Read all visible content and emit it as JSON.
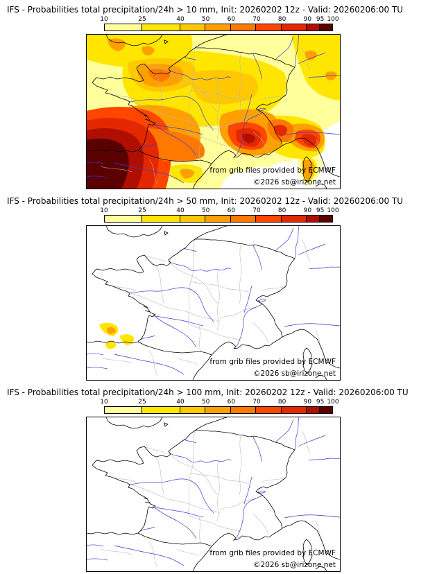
{
  "panels": [
    {
      "threshold": "10 mm",
      "title": "IFS - Probabilities total precipitation/24h > 10 mm, Init: 20260202 12z - Valid: 20260206:00 TU"
    },
    {
      "threshold": "50 mm",
      "title": "IFS - Probabilities total precipitation/24h > 50 mm, Init: 20260202 12z - Valid: 20260206:00 TU"
    },
    {
      "threshold": "100 mm",
      "title": "IFS - Probabilities total precipitation/24h > 100 mm, Init: 20260202 12z - Valid: 20260206:00 TU"
    }
  ],
  "credits": {
    "source": "from grib files provided by ECMWF",
    "copyright": "©2026 sb@irizone.net"
  },
  "colorbar": {
    "tick_labels": [
      "10",
      "25",
      "40",
      "50",
      "60",
      "70",
      "80",
      "90",
      "95",
      "100"
    ],
    "tick_values": [
      10,
      25,
      40,
      50,
      60,
      70,
      80,
      90,
      95,
      100
    ],
    "colors": [
      "#FFFF9C",
      "#FFE600",
      "#FFC800",
      "#FFA000",
      "#FF7800",
      "#FF4600",
      "#E32800",
      "#AF0E00",
      "#5A0000"
    ]
  },
  "map_colors": {
    "coast": "#000000",
    "river": "#3a3ad0",
    "department": "#b5b5b5",
    "background": "#ffffff"
  }
}
